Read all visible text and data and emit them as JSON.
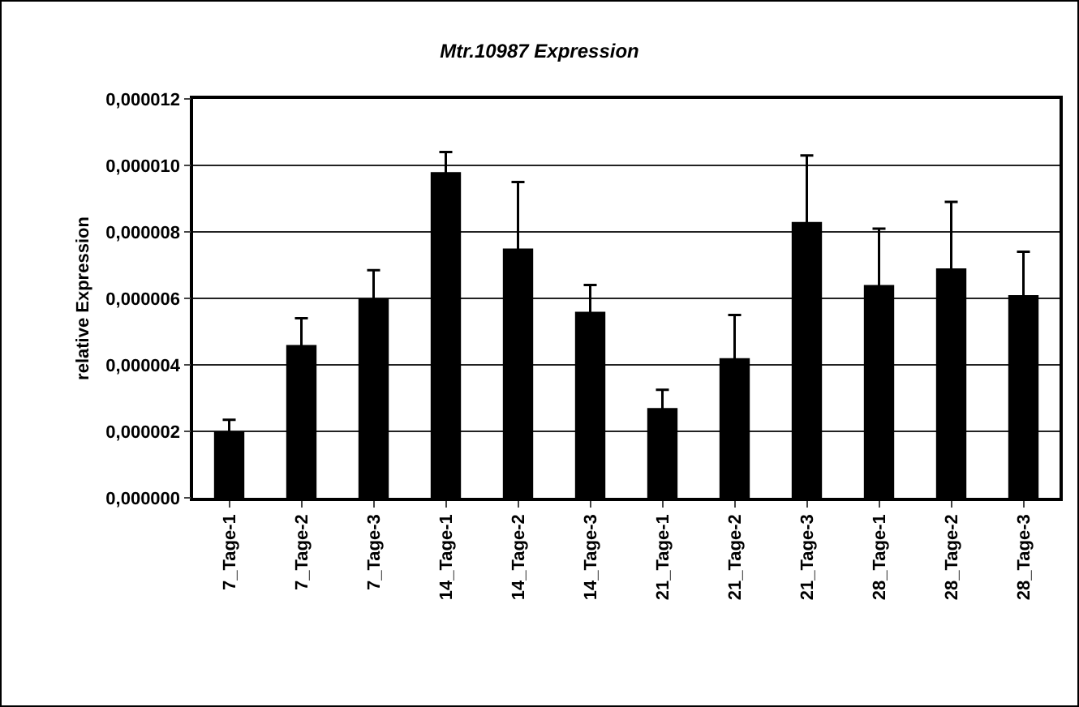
{
  "chart_data": {
    "type": "bar",
    "title": "Mtr.10987 Expression",
    "ylabel": "relative Expression",
    "categories": [
      "7_Tage-1",
      "7_Tage-2",
      "7_Tage-3",
      "14_Tage-1",
      "14_Tage-2",
      "14_Tage-3",
      "21_Tage-1",
      "21_Tage-2",
      "21_Tage-3",
      "28_Tage-1",
      "28_Tage-2",
      "28_Tage-3"
    ],
    "values": [
      2e-06,
      4.6e-06,
      6e-06,
      9.8e-06,
      7.5e-06,
      5.6e-06,
      2.7e-06,
      4.2e-06,
      8.3e-06,
      6.4e-06,
      6.9e-06,
      6.1e-06
    ],
    "errors": [
      3.5e-07,
      8e-07,
      8.5e-07,
      6e-07,
      2e-06,
      8e-07,
      5.5e-07,
      1.3e-06,
      2e-06,
      1.7e-06,
      2e-06,
      1.3e-06
    ],
    "color": "#000000",
    "ylim": [
      0,
      1.2e-05
    ],
    "yticks": [
      {
        "value": 0,
        "label": "0,000000"
      },
      {
        "value": 2e-06,
        "label": "0,000002"
      },
      {
        "value": 4e-06,
        "label": "0,000004"
      },
      {
        "value": 6e-06,
        "label": "0,000006"
      },
      {
        "value": 8e-06,
        "label": "0,000008"
      },
      {
        "value": 1e-05,
        "label": "0,000010"
      },
      {
        "value": 1.2e-05,
        "label": "0,000012"
      }
    ],
    "grid": "y",
    "legend": false
  }
}
